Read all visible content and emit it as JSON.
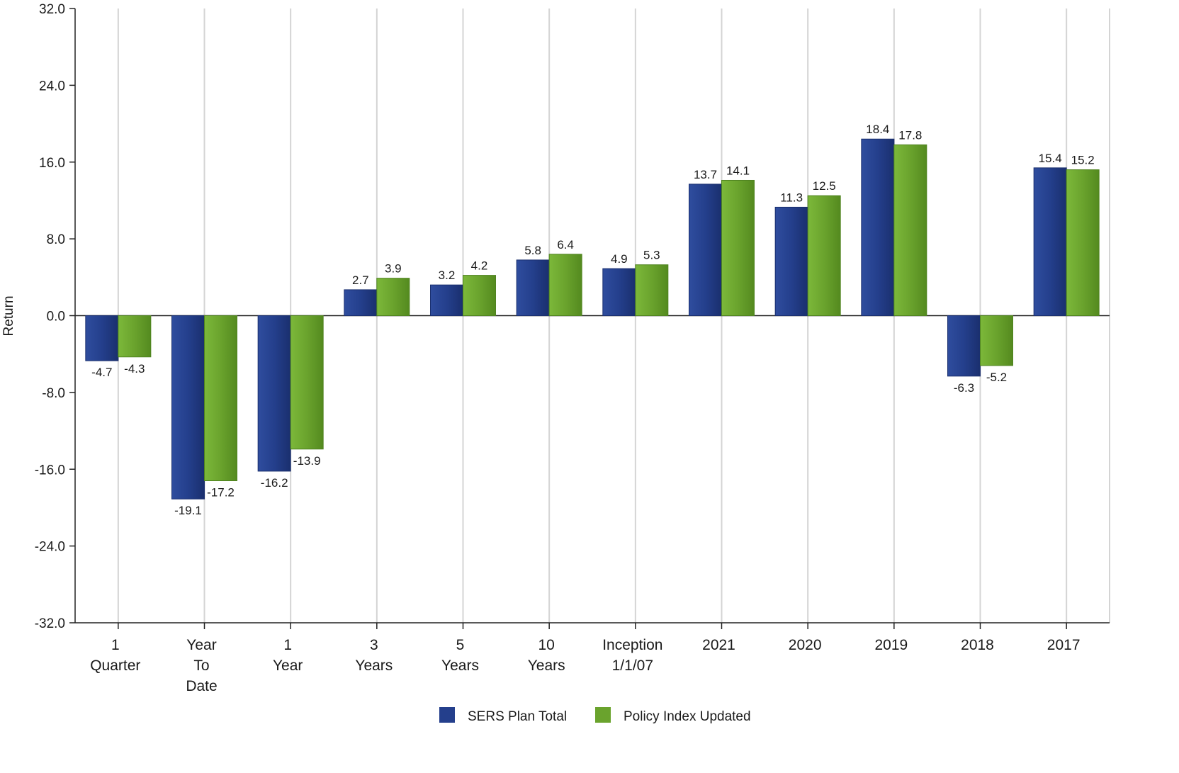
{
  "chart_data": {
    "type": "bar",
    "ylabel": "Return",
    "ylim": [
      -32,
      32
    ],
    "yticks": [
      "32.0",
      "24.0",
      "16.0",
      "8.0",
      "0.0",
      "-8.0",
      "-16.0",
      "-24.0",
      "-32.0"
    ],
    "ytick_values": [
      32,
      24,
      16,
      8,
      0,
      -8,
      -16,
      -24,
      -32
    ],
    "grid": "vertical",
    "legend_position": "bottom-center",
    "categories": [
      [
        "1",
        "Quarter"
      ],
      [
        "Year",
        "To",
        "Date"
      ],
      [
        "1",
        "Year"
      ],
      [
        "3",
        "Years"
      ],
      [
        "5",
        "Years"
      ],
      [
        "10",
        "Years"
      ],
      [
        "Inception",
        "1/1/07"
      ],
      [
        "2021"
      ],
      [
        "2020"
      ],
      [
        "2019"
      ],
      [
        "2018"
      ],
      [
        "2017"
      ]
    ],
    "series": [
      {
        "name": "SERS Plan Total",
        "color": "#243f8c",
        "values": [
          -4.7,
          -19.1,
          -16.2,
          2.7,
          3.2,
          5.8,
          4.9,
          13.7,
          11.3,
          18.4,
          -6.3,
          15.4
        ],
        "labels": [
          "-4.7",
          "-19.1",
          "-16.2",
          "2.7",
          "3.2",
          "5.8",
          "4.9",
          "13.7",
          "11.3",
          "18.4",
          "-6.3",
          "15.4"
        ]
      },
      {
        "name": "Policy Index Updated",
        "color": "#6aa32d",
        "values": [
          -4.3,
          -17.2,
          -13.9,
          3.9,
          4.2,
          6.4,
          5.3,
          14.1,
          12.5,
          17.8,
          -5.2,
          15.2
        ],
        "labels": [
          "-4.3",
          "-17.2",
          "-13.9",
          "3.9",
          "4.2",
          "6.4",
          "5.3",
          "14.1",
          "12.5",
          "17.8",
          "-5.2",
          "15.2"
        ]
      }
    ]
  }
}
